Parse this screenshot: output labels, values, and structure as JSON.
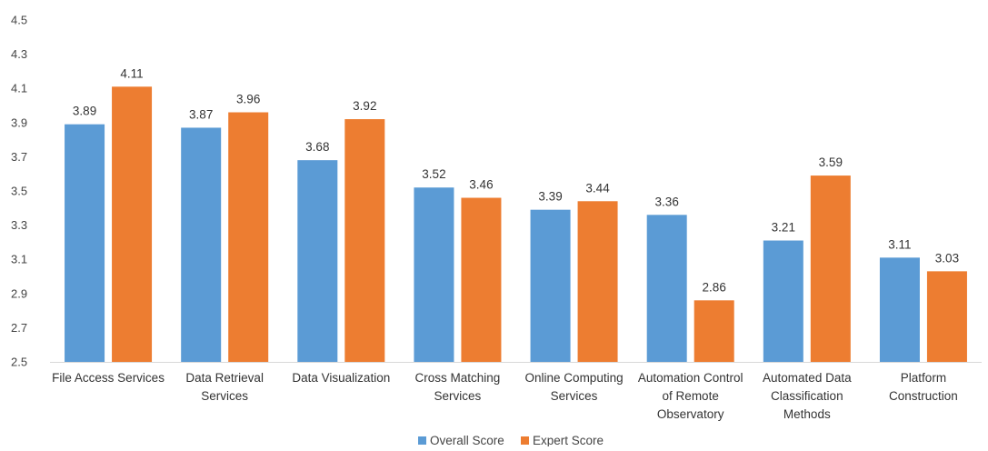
{
  "chart_data": {
    "type": "bar",
    "categories": [
      [
        "File Access Services"
      ],
      [
        "Data Retrieval",
        "Services"
      ],
      [
        "Data Visualization"
      ],
      [
        "Cross Matching",
        "Services"
      ],
      [
        "Online Computing",
        "Services"
      ],
      [
        "Automation Control",
        "of Remote",
        "Observatory"
      ],
      [
        "Automated Data",
        "Classification",
        "Methods"
      ],
      [
        "Platform",
        "Construction"
      ]
    ],
    "series": [
      {
        "name": "Overall Score",
        "color": "#5B9BD5",
        "values": [
          3.89,
          3.87,
          3.68,
          3.52,
          3.39,
          3.36,
          3.21,
          3.11
        ]
      },
      {
        "name": "Expert Score",
        "color": "#ED7D31",
        "values": [
          4.11,
          3.96,
          3.92,
          3.46,
          3.44,
          2.86,
          3.59,
          3.03
        ]
      }
    ],
    "ylim": [
      2.5,
      4.5
    ],
    "yticks": [
      "2.5",
      "2.7",
      "2.9",
      "3.1",
      "3.3",
      "3.5",
      "3.7",
      "3.9",
      "4.1",
      "4.3",
      "4.5"
    ],
    "grid": false,
    "legend_position": "bottom-center",
    "data_labels": true
  }
}
